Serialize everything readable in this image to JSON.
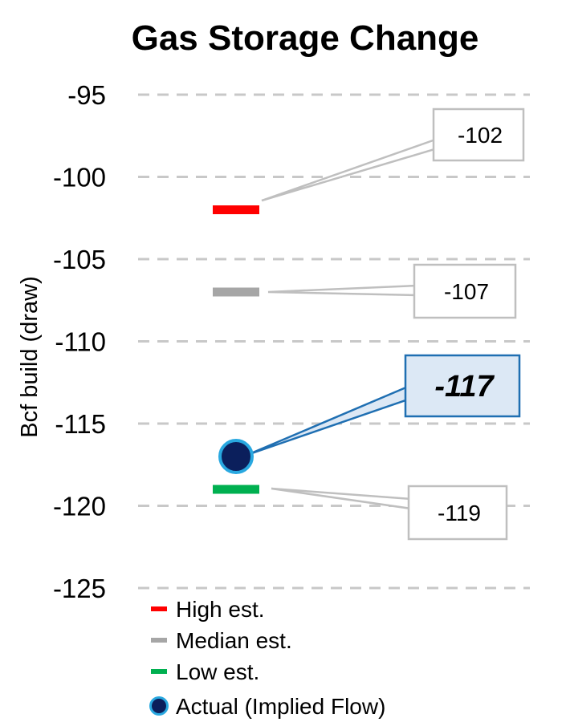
{
  "colors": {
    "high": "#ff0000",
    "median": "#a6a6a6",
    "low": "#00b050",
    "actual_fill": "#0b1f5c",
    "actual_ring": "#29a8e0",
    "actual_box_fill": "#dce8f5",
    "actual_box_border": "#1f6fb2",
    "callout_border": "#bfbfbf",
    "grid": "#c8c8c8"
  },
  "chart_data": {
    "type": "scatter",
    "title": "Gas Storage Change",
    "ylabel": "Bcf build (draw)",
    "ylim": [
      -125,
      -95
    ],
    "yticks": [
      -95,
      -100,
      -105,
      -110,
      -115,
      -120,
      -125
    ],
    "ytick_labels": [
      "-95",
      "-100",
      "-105",
      "-110",
      "-115",
      "-120",
      "-125"
    ],
    "grid": "horizontal dashed",
    "series": [
      {
        "name": "High est.",
        "value": -102,
        "label": "-102",
        "marker": "dash"
      },
      {
        "name": "Median est.",
        "value": -107,
        "label": "-107",
        "marker": "dash"
      },
      {
        "name": "Low est.",
        "value": -119,
        "label": "-119",
        "marker": "dash"
      },
      {
        "name": "Actual (Implied Flow)",
        "value": -117,
        "label": "-117",
        "marker": "circle"
      }
    ],
    "legend": {
      "placement": "bottom",
      "items": [
        "High est.",
        "Median est.",
        "Low est.",
        "Actual (Implied Flow)"
      ]
    }
  }
}
